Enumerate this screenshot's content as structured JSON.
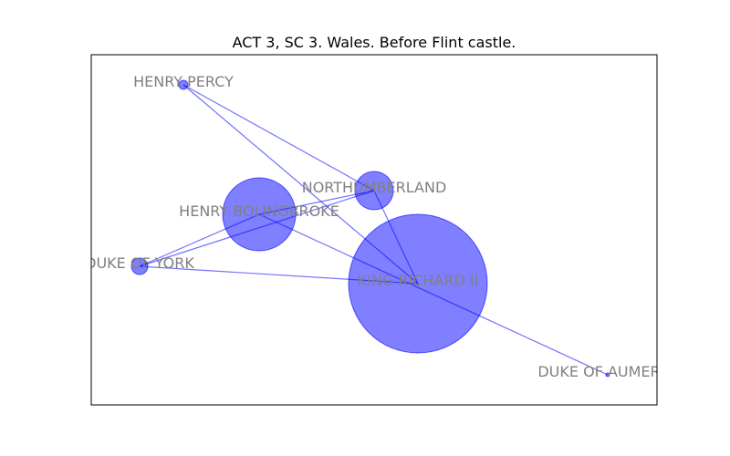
{
  "title": "ACT 3, SC 3. Wales. Before Flint castle.",
  "colors": {
    "node_fill": "#0000ff",
    "edge": "#0000ff",
    "label": "#808080",
    "frame": "#000000"
  },
  "nodes": [
    {
      "id": "henry-percy",
      "label": "HENRY PERCY",
      "weight": 1
    },
    {
      "id": "northumberland",
      "label": "NORTHUMBERLAND",
      "weight": 3
    },
    {
      "id": "henry-bolingbroke",
      "label": "HENRY BOLINGBROKE",
      "weight": 11
    },
    {
      "id": "duke-of-york",
      "label": "DUKE OF YORK",
      "weight": 1.5
    },
    {
      "id": "king-richard-ii",
      "label": "KING RICHARD II",
      "weight": 40
    },
    {
      "id": "duke-of-aumerle",
      "label": "DUKE OF AUMERLE",
      "weight": 0.2
    }
  ],
  "edges": [
    {
      "source": "henry-percy",
      "target": "northumberland"
    },
    {
      "source": "henry-percy",
      "target": "king-richard-ii"
    },
    {
      "source": "northumberland",
      "target": "henry-bolingbroke"
    },
    {
      "source": "northumberland",
      "target": "duke-of-york"
    },
    {
      "source": "northumberland",
      "target": "king-richard-ii"
    },
    {
      "source": "henry-bolingbroke",
      "target": "duke-of-york"
    },
    {
      "source": "duke-of-york",
      "target": "king-richard-ii"
    },
    {
      "source": "henry-bolingbroke",
      "target": "duke-of-aumerle"
    }
  ]
}
